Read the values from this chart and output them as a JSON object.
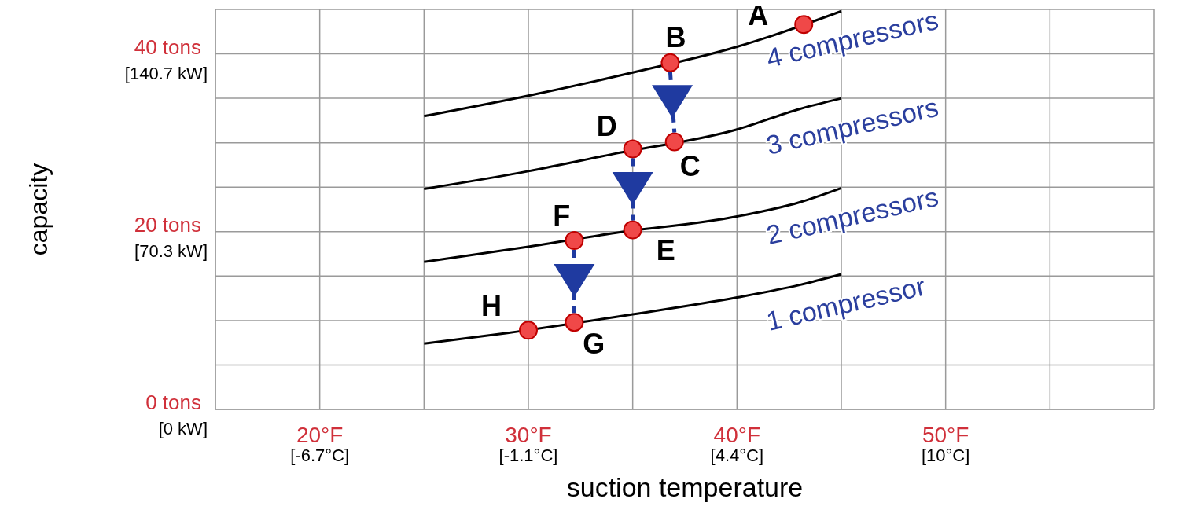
{
  "chart_data": {
    "type": "line",
    "xlabel": "suction temperature",
    "y2label": "capacity",
    "xlim": [
      15,
      60
    ],
    "xticks": [
      {
        "value": 15,
        "label": null
      },
      {
        "value": 20,
        "label": "20°F"
      },
      {
        "value": 25,
        "label": null
      },
      {
        "value": 30,
        "label": "30°F"
      },
      {
        "value": 35,
        "label": null
      },
      {
        "value": 40,
        "label": "40°F"
      },
      {
        "value": 45,
        "label": null
      },
      {
        "value": 50,
        "label": "50°F"
      },
      {
        "value": 55,
        "label": null
      },
      {
        "value": 60,
        "label": null
      }
    ],
    "x2lim": [
      -9.444,
      15.556
    ],
    "x2ticks": [
      {
        "value": -6.667,
        "label": "[-6.7°C]"
      },
      {
        "value": -1.111,
        "label": "[-1.1°C]"
      },
      {
        "value": 4.444,
        "label": "[4.4°C]"
      },
      {
        "value": 10,
        "label": "[10°C]"
      }
    ],
    "y2lim": [
      0,
      158.26
    ],
    "y2ticks": [
      {
        "value": 0,
        "label": "[0 kW]"
      },
      {
        "value": 70.34,
        "label": "[70.3 kW]"
      },
      {
        "value": 140.67,
        "label": "[140.7 kW]"
      }
    ],
    "ylim": [
      0,
      45
    ],
    "yticks": [
      {
        "value": 0,
        "label": "0 tons"
      },
      {
        "value": 5,
        "label": null
      },
      {
        "value": 10,
        "label": null
      },
      {
        "value": 15,
        "label": null
      },
      {
        "value": 20,
        "label": "20 tons"
      },
      {
        "value": 25,
        "label": null
      },
      {
        "value": 30,
        "label": null
      },
      {
        "value": 35,
        "label": null
      },
      {
        "value": 40,
        "label": "40 tons"
      },
      {
        "value": 45,
        "label": null
      }
    ],
    "grid": true,
    "series": [
      {
        "color": "#000000",
        "x": [
          25,
          30,
          35,
          40,
          41.5,
          45
        ],
        "values": [
          33.0,
          35.3,
          37.9,
          40.8,
          41.9,
          44.8
        ]
      },
      {
        "color": "#000000",
        "x": [
          25,
          30,
          34,
          40,
          43,
          45
        ],
        "values": [
          24.8,
          26.8,
          28.7,
          31.5,
          33.8,
          35.0
        ]
      },
      {
        "color": "#000000",
        "x": [
          25,
          30,
          34,
          40,
          43,
          45
        ],
        "values": [
          16.6,
          18.3,
          19.8,
          21.7,
          23.3,
          24.9
        ]
      },
      {
        "color": "#000000",
        "x": [
          25,
          29,
          35,
          40,
          43,
          45
        ],
        "values": [
          7.4,
          8.6,
          10.7,
          12.6,
          14.0,
          15.2
        ]
      },
      {
        "type": "scatter",
        "color": "#f04848",
        "x": [
          43.2,
          36.8,
          37.0,
          35.0,
          35.0,
          32.2,
          32.2,
          30.0
        ],
        "values": [
          43.3,
          39.0,
          30.1,
          29.3,
          20.2,
          19.0,
          9.8,
          8.9
        ]
      }
    ],
    "annotations": [
      {
        "text": "A",
        "x": 43.2,
        "y": 43.3
      },
      {
        "text": "B",
        "x": 36.8,
        "y": 39.0
      },
      {
        "text": "C",
        "x": 37.0,
        "y": 30.1
      },
      {
        "text": "D",
        "x": 35.0,
        "y": 29.3
      },
      {
        "text": "E",
        "x": 35.0,
        "y": 20.2
      },
      {
        "text": "F",
        "x": 32.2,
        "y": 19.0
      },
      {
        "text": "G",
        "x": 32.2,
        "y": 9.8
      },
      {
        "text": "H",
        "x": 30.0,
        "y": 8.9
      },
      {
        "text": "4 compressors",
        "x": 45,
        "y": 44.8
      },
      {
        "text": "3 compressors",
        "x": 45,
        "y": 35.0
      },
      {
        "text": "2 compressors",
        "x": 45,
        "y": 24.9
      },
      {
        "text": "1 compressor",
        "x": 45,
        "y": 15.2
      }
    ]
  }
}
